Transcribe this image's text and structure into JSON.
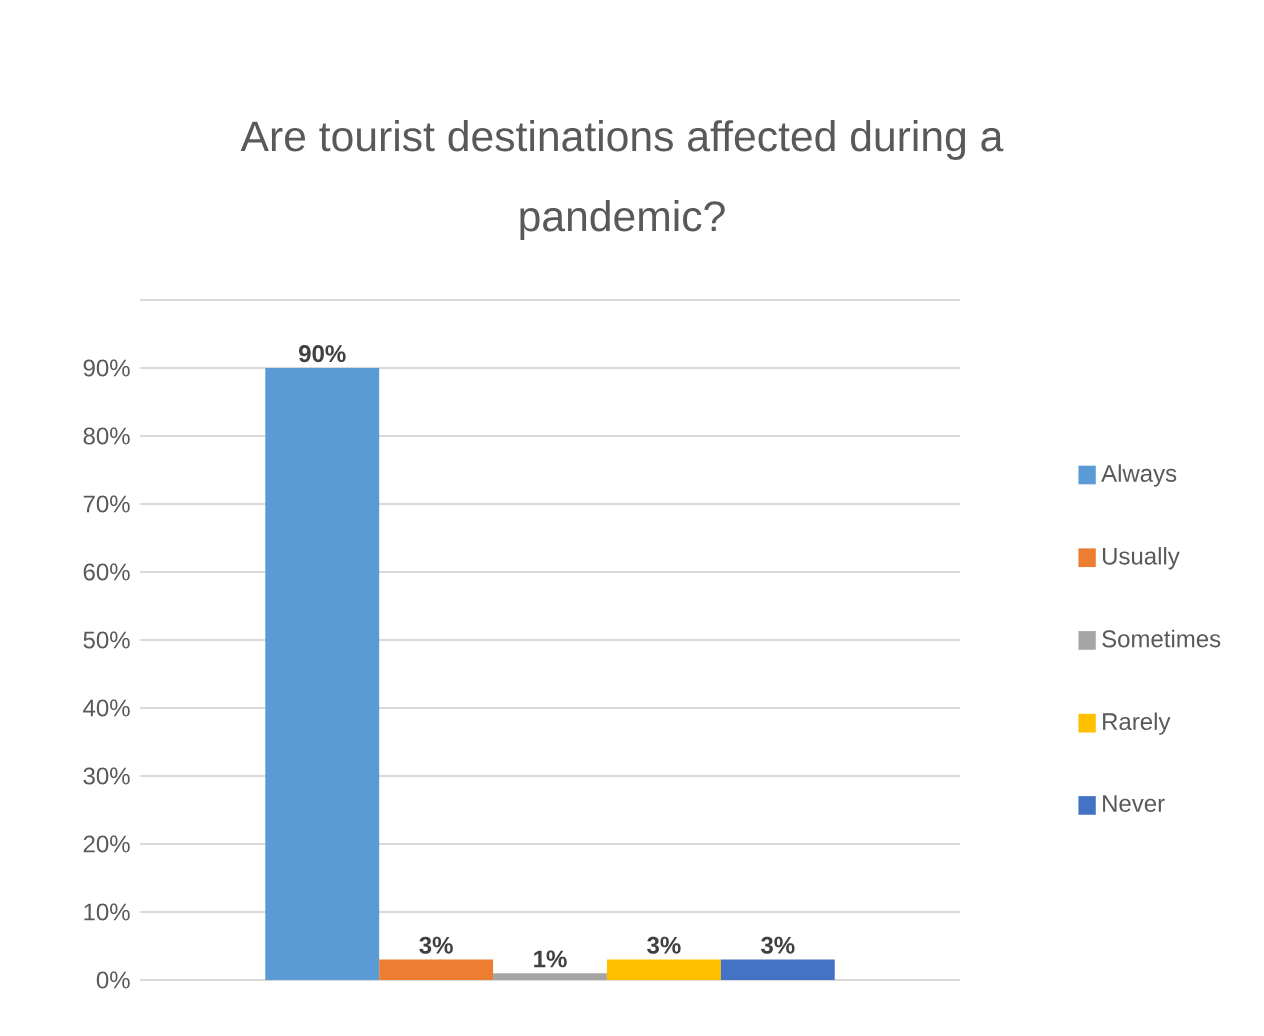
{
  "chart_data": {
    "type": "bar",
    "title": "Are tourist destinations affected during a pandemic?",
    "categories": [
      null
    ],
    "series": [
      {
        "name": "Always",
        "color": "#5b9bd5",
        "values": [
          90
        ],
        "value_labels": [
          "90%"
        ]
      },
      {
        "name": "Usually",
        "color": "#ed7d31",
        "values": [
          3
        ],
        "value_labels": [
          "3%"
        ]
      },
      {
        "name": "Sometimes",
        "color": "#a5a5a5",
        "values": [
          1
        ],
        "value_labels": [
          "1%"
        ]
      },
      {
        "name": "Rarely",
        "color": "#ffc000",
        "values": [
          3
        ],
        "value_labels": [
          "3%"
        ]
      },
      {
        "name": "Never",
        "color": "#4472c4",
        "values": [
          3
        ],
        "value_labels": [
          "3%"
        ]
      }
    ],
    "ylim": [
      0,
      100
    ],
    "yticks": [
      {
        "value": 0,
        "label": "0%"
      },
      {
        "value": 10,
        "label": "10%"
      },
      {
        "value": 20,
        "label": "20%"
      },
      {
        "value": 30,
        "label": "30%"
      },
      {
        "value": 40,
        "label": "40%"
      },
      {
        "value": 50,
        "label": "50%"
      },
      {
        "value": 60,
        "label": "60%"
      },
      {
        "value": 70,
        "label": "70%"
      },
      {
        "value": 80,
        "label": "80%"
      },
      {
        "value": 90,
        "label": "90%"
      },
      {
        "value": 100,
        "label": null
      }
    ],
    "grid": "y",
    "legend": "right"
  }
}
